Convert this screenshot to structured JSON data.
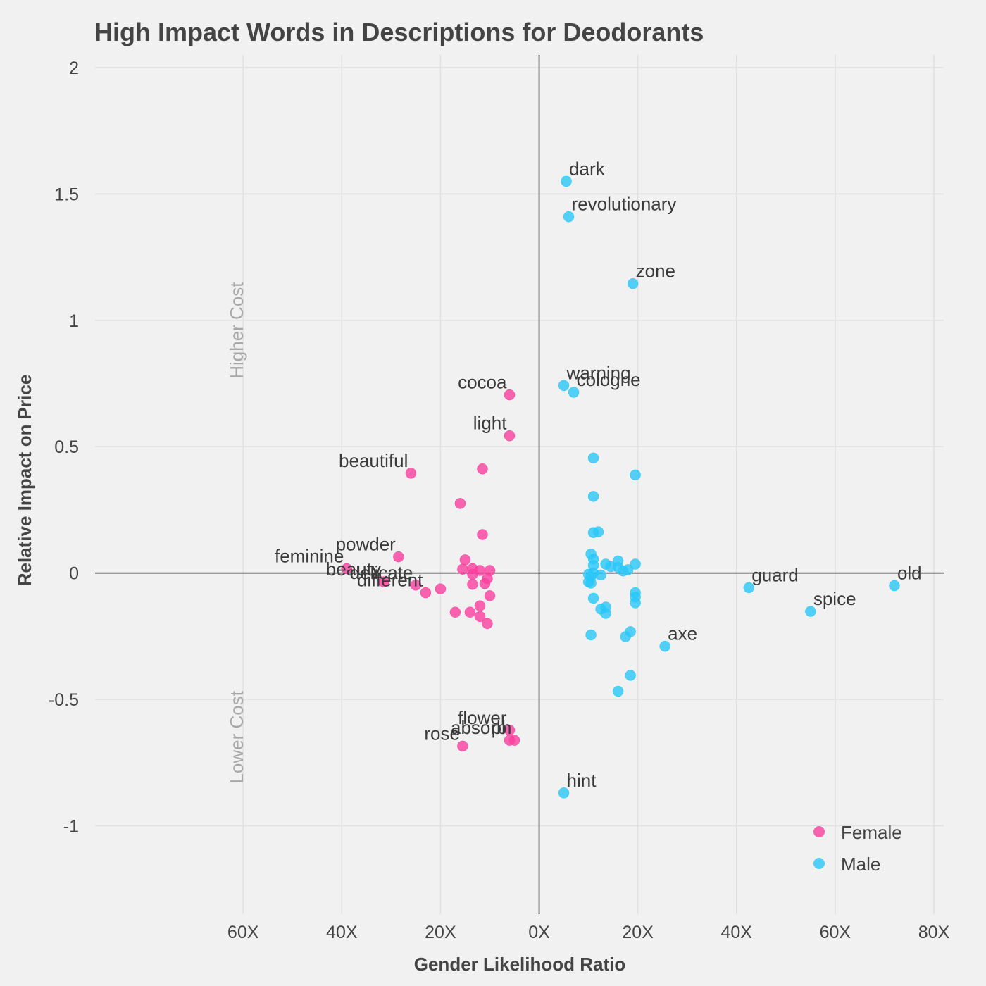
{
  "chart_data": {
    "type": "scatter",
    "title": "High Impact Words in Descriptions for Deodorants",
    "xlabel": "Gender Likelihood Ratio",
    "ylabel": "Relative Impact on Price",
    "xlim": [
      -90,
      82
    ],
    "ylim": [
      -1.35,
      2.05
    ],
    "x_ticks": [
      {
        "value": -60,
        "label": "60X"
      },
      {
        "value": -40,
        "label": "40X"
      },
      {
        "value": -20,
        "label": "20X"
      },
      {
        "value": 0,
        "label": "0X"
      },
      {
        "value": 20,
        "label": "20X"
      },
      {
        "value": 40,
        "label": "40X"
      },
      {
        "value": 60,
        "label": "60X"
      },
      {
        "value": 80,
        "label": "80X"
      }
    ],
    "y_ticks": [
      {
        "value": 2,
        "label": "2"
      },
      {
        "value": 1.5,
        "label": "1.5"
      },
      {
        "value": 1,
        "label": "1"
      },
      {
        "value": 0.5,
        "label": "0.5"
      },
      {
        "value": 0,
        "label": "0"
      },
      {
        "value": -0.5,
        "label": "-0.5"
      },
      {
        "value": -1,
        "label": "-1"
      }
    ],
    "annotations": [
      {
        "text": "Higher Cost",
        "x": -60,
        "y": 0.96
      },
      {
        "text": "Lower Cost",
        "x": -60,
        "y": -0.65
      }
    ],
    "grid": true,
    "legend_position": "bottom-right",
    "series": [
      {
        "name": "Female",
        "color": "#fa3e9e",
        "points": [
          {
            "x": -6,
            "y": 0.705,
            "label": "cocoa"
          },
          {
            "x": -6,
            "y": 0.543,
            "label": "light"
          },
          {
            "x": -26,
            "y": 0.395,
            "label": "beautiful"
          },
          {
            "x": -11.5,
            "y": 0.412
          },
          {
            "x": -16,
            "y": 0.275
          },
          {
            "x": -11.5,
            "y": 0.152
          },
          {
            "x": -28.5,
            "y": 0.064,
            "label": "powder"
          },
          {
            "x": -39,
            "y": 0.017,
            "label": "feminine"
          },
          {
            "x": -31.5,
            "y": -0.035,
            "label": "beauty"
          },
          {
            "x": -25,
            "y": -0.048,
            "label": "delicate"
          },
          {
            "x": -23,
            "y": -0.078,
            "label": "different"
          },
          {
            "x": -20,
            "y": -0.063
          },
          {
            "x": -15,
            "y": 0.052
          },
          {
            "x": -15.5,
            "y": 0.015
          },
          {
            "x": -13.5,
            "y": 0.017
          },
          {
            "x": -13.5,
            "y": -0.005
          },
          {
            "x": -12,
            "y": 0.01
          },
          {
            "x": -10,
            "y": 0.01
          },
          {
            "x": -10.5,
            "y": -0.022
          },
          {
            "x": -11,
            "y": -0.042
          },
          {
            "x": -13.5,
            "y": -0.045
          },
          {
            "x": -10,
            "y": -0.09
          },
          {
            "x": -12,
            "y": -0.13
          },
          {
            "x": -14,
            "y": -0.155
          },
          {
            "x": -17,
            "y": -0.155
          },
          {
            "x": -12,
            "y": -0.172
          },
          {
            "x": -10.5,
            "y": -0.2
          },
          {
            "x": -6,
            "y": -0.622,
            "label": "flower"
          },
          {
            "x": -6,
            "y": -0.662,
            "label": "absorb"
          },
          {
            "x": -5,
            "y": -0.662,
            "label": "ph"
          },
          {
            "x": -15.5,
            "y": -0.685,
            "label": "rose"
          }
        ]
      },
      {
        "name": "Male",
        "color": "#29c7f7",
        "points": [
          {
            "x": 5.5,
            "y": 1.55,
            "label": "dark"
          },
          {
            "x": 6,
            "y": 1.41,
            "label": "revolutionary"
          },
          {
            "x": 19,
            "y": 1.145,
            "label": "zone"
          },
          {
            "x": 5,
            "y": 0.742,
            "label": "warning"
          },
          {
            "x": 7,
            "y": 0.715,
            "label": "cologne"
          },
          {
            "x": 11,
            "y": 0.455
          },
          {
            "x": 19.5,
            "y": 0.388
          },
          {
            "x": 11,
            "y": 0.303
          },
          {
            "x": 11,
            "y": 0.16
          },
          {
            "x": 12,
            "y": 0.163
          },
          {
            "x": 10.5,
            "y": 0.075
          },
          {
            "x": 11,
            "y": 0.055
          },
          {
            "x": 11,
            "y": 0.03
          },
          {
            "x": 11,
            "y": 0.0
          },
          {
            "x": 10,
            "y": -0.005
          },
          {
            "x": 10,
            "y": -0.035
          },
          {
            "x": 10.5,
            "y": -0.04
          },
          {
            "x": 10.5,
            "y": -0.015
          },
          {
            "x": 12.5,
            "y": -0.008
          },
          {
            "x": 13.5,
            "y": 0.035
          },
          {
            "x": 14.5,
            "y": 0.025
          },
          {
            "x": 16,
            "y": 0.048
          },
          {
            "x": 16,
            "y": 0.022
          },
          {
            "x": 17,
            "y": 0.008
          },
          {
            "x": 18,
            "y": 0.013
          },
          {
            "x": 19.5,
            "y": 0.035
          },
          {
            "x": 19.5,
            "y": -0.078
          },
          {
            "x": 19.5,
            "y": -0.095
          },
          {
            "x": 19.5,
            "y": -0.118
          },
          {
            "x": 11,
            "y": -0.1
          },
          {
            "x": 13.5,
            "y": -0.135
          },
          {
            "x": 12.5,
            "y": -0.143
          },
          {
            "x": 13.5,
            "y": -0.16
          },
          {
            "x": 10.5,
            "y": -0.245
          },
          {
            "x": 18.5,
            "y": -0.232
          },
          {
            "x": 17.5,
            "y": -0.252
          },
          {
            "x": 18.5,
            "y": -0.405
          },
          {
            "x": 16,
            "y": -0.468
          },
          {
            "x": 25.5,
            "y": -0.29,
            "label": "axe"
          },
          {
            "x": 42.5,
            "y": -0.058,
            "label": "guard"
          },
          {
            "x": 55,
            "y": -0.152,
            "label": "spice"
          },
          {
            "x": 72,
            "y": -0.05,
            "label": "old"
          },
          {
            "x": 5,
            "y": -0.87,
            "label": "hint"
          }
        ]
      }
    ]
  }
}
